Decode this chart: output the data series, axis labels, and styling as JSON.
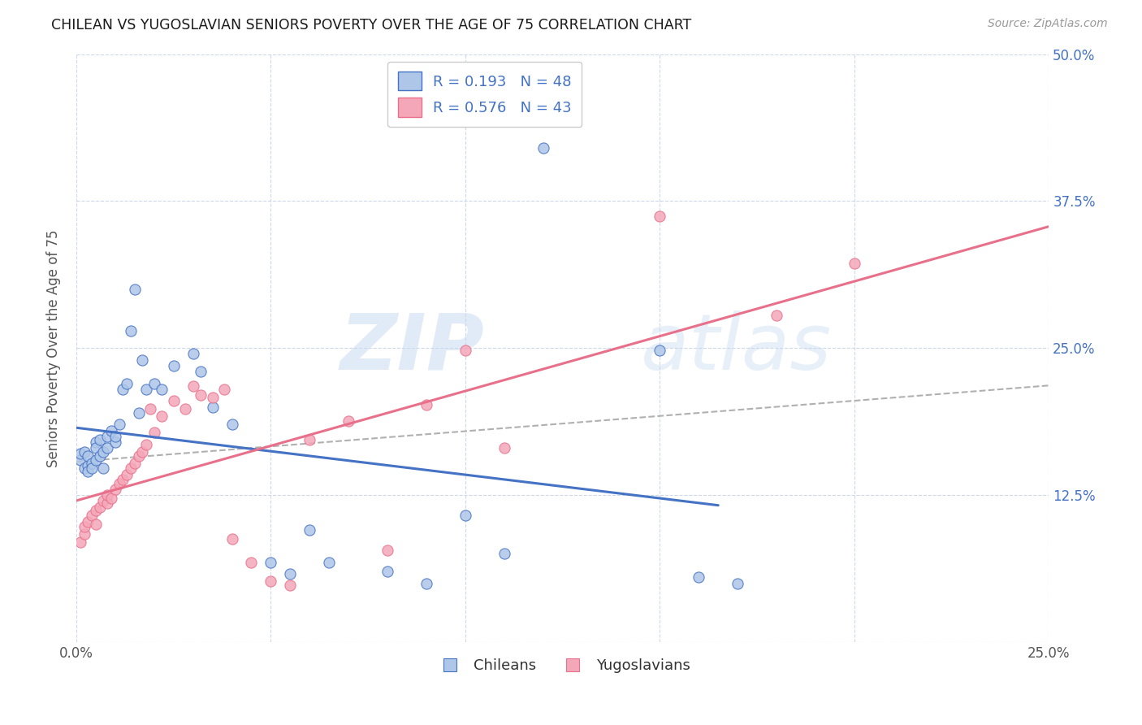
{
  "title": "CHILEAN VS YUGOSLAVIAN SENIORS POVERTY OVER THE AGE OF 75 CORRELATION CHART",
  "source": "Source: ZipAtlas.com",
  "ylabel": "Seniors Poverty Over the Age of 75",
  "xlim": [
    0.0,
    0.25
  ],
  "ylim": [
    0.0,
    0.5
  ],
  "xticks": [
    0.0,
    0.05,
    0.1,
    0.15,
    0.2,
    0.25
  ],
  "yticks": [
    0.0,
    0.125,
    0.25,
    0.375,
    0.5
  ],
  "xtick_labels": [
    "0.0%",
    "",
    "",
    "",
    "",
    "25.0%"
  ],
  "ytick_labels": [
    "",
    "12.5%",
    "25.0%",
    "37.5%",
    "50.0%"
  ],
  "chilean_R": 0.193,
  "chilean_N": 48,
  "yugoslav_R": 0.576,
  "yugoslav_N": 43,
  "chilean_color": "#aec6e8",
  "yugoslav_color": "#f4a7b9",
  "chilean_line_color": "#4472c4",
  "yugoslav_line_color": "#e8708a",
  "trend_line_color": "#b0b0b0",
  "background_color": "#ffffff",
  "grid_color": "#c8d4e8",
  "chilean_x": [
    0.001,
    0.001,
    0.002,
    0.002,
    0.003,
    0.003,
    0.003,
    0.004,
    0.004,
    0.005,
    0.005,
    0.005,
    0.006,
    0.006,
    0.007,
    0.007,
    0.008,
    0.008,
    0.009,
    0.01,
    0.01,
    0.011,
    0.012,
    0.013,
    0.014,
    0.015,
    0.016,
    0.017,
    0.018,
    0.02,
    0.022,
    0.025,
    0.03,
    0.032,
    0.035,
    0.04,
    0.05,
    0.055,
    0.06,
    0.065,
    0.08,
    0.09,
    0.1,
    0.11,
    0.12,
    0.15,
    0.16,
    0.17
  ],
  "chilean_y": [
    0.155,
    0.16,
    0.148,
    0.162,
    0.15,
    0.158,
    0.145,
    0.152,
    0.148,
    0.17,
    0.155,
    0.165,
    0.158,
    0.172,
    0.148,
    0.162,
    0.175,
    0.165,
    0.18,
    0.17,
    0.175,
    0.185,
    0.215,
    0.22,
    0.265,
    0.3,
    0.195,
    0.24,
    0.215,
    0.22,
    0.215,
    0.235,
    0.245,
    0.23,
    0.2,
    0.185,
    0.068,
    0.058,
    0.095,
    0.068,
    0.06,
    0.05,
    0.108,
    0.075,
    0.42,
    0.248,
    0.055,
    0.05
  ],
  "yugoslav_x": [
    0.001,
    0.002,
    0.002,
    0.003,
    0.004,
    0.005,
    0.005,
    0.006,
    0.007,
    0.008,
    0.008,
    0.009,
    0.01,
    0.011,
    0.012,
    0.013,
    0.014,
    0.015,
    0.016,
    0.017,
    0.018,
    0.019,
    0.02,
    0.022,
    0.025,
    0.028,
    0.03,
    0.032,
    0.035,
    0.038,
    0.04,
    0.045,
    0.05,
    0.055,
    0.06,
    0.07,
    0.08,
    0.09,
    0.1,
    0.11,
    0.15,
    0.18,
    0.2
  ],
  "yugoslav_y": [
    0.085,
    0.092,
    0.098,
    0.102,
    0.108,
    0.1,
    0.112,
    0.115,
    0.12,
    0.118,
    0.125,
    0.122,
    0.13,
    0.135,
    0.138,
    0.142,
    0.148,
    0.152,
    0.158,
    0.162,
    0.168,
    0.198,
    0.178,
    0.192,
    0.205,
    0.198,
    0.218,
    0.21,
    0.208,
    0.215,
    0.088,
    0.068,
    0.052,
    0.048,
    0.172,
    0.188,
    0.078,
    0.202,
    0.248,
    0.165,
    0.362,
    0.278,
    0.322
  ],
  "watermark_zip": "ZIP",
  "watermark_atlas": "atlas",
  "legend_chilean": "Chileans",
  "legend_yugoslav": "Yugoslavians"
}
